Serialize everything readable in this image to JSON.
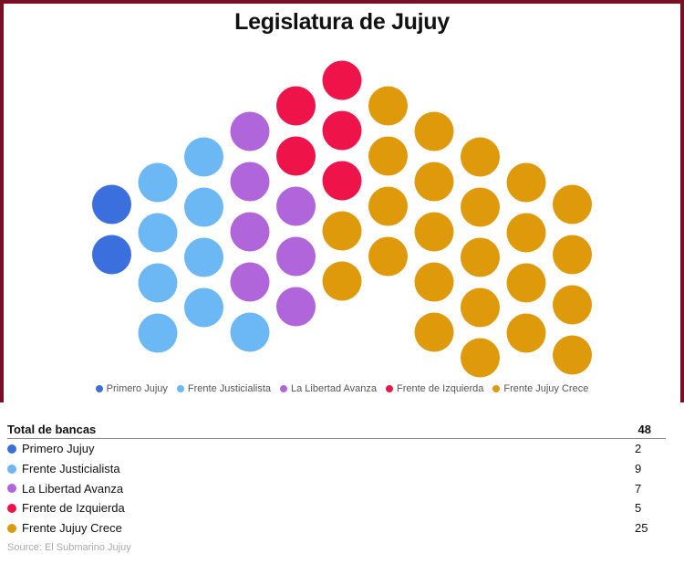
{
  "title": "Legislatura de Jujuy",
  "chart_data": {
    "type": "parliament",
    "title": "Legislatura de Jujuy",
    "total_seats": 48,
    "series": [
      {
        "name": "Primero Jujuy",
        "seats": 2,
        "color": "#3a6fdd"
      },
      {
        "name": "Frente Justicialista",
        "seats": 9,
        "color": "#6bb8f5"
      },
      {
        "name": "La Libertad Avanza",
        "seats": 7,
        "color": "#b165db"
      },
      {
        "name": "Frente de Izquierda",
        "seats": 5,
        "color": "#ee1449"
      },
      {
        "name": "Frente Jujuy Crece",
        "seats": 25,
        "color": "#df9a0c"
      }
    ],
    "legend_position": "bottom"
  },
  "table": {
    "header_label": "Total de bancas",
    "header_value": "48",
    "rows": [
      {
        "label": "Primero Jujuy",
        "value": "2",
        "color": "#3a6fdd"
      },
      {
        "label": "Frente Justicialista",
        "value": "9",
        "color": "#6bb8f5"
      },
      {
        "label": "La Libertad Avanza",
        "value": "7",
        "color": "#b165db"
      },
      {
        "label": "Frente de Izquierda",
        "value": "5",
        "color": "#ee1449"
      },
      {
        "label": "Frente Jujuy Crece",
        "value": "25",
        "color": "#df9a0c"
      }
    ]
  },
  "source": "Source: El Submarino Jujuy"
}
